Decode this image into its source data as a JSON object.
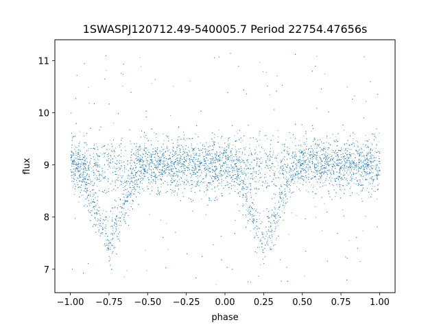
{
  "chart_data": {
    "type": "scatter",
    "title": "1SWASPJ120712.49-540005.7 Period 22754.47656s",
    "xlabel": "phase",
    "ylabel": "flux",
    "xlim": [
      -1.1,
      1.1
    ],
    "ylim": [
      6.55,
      11.4
    ],
    "x_ticks": [
      -1.0,
      -0.75,
      -0.5,
      -0.25,
      0.0,
      0.25,
      0.5,
      0.75,
      1.0
    ],
    "x_tick_labels": [
      "−1.00",
      "−0.75",
      "−0.50",
      "−0.25",
      "0.00",
      "0.25",
      "0.50",
      "0.75",
      "1.00"
    ],
    "y_ticks": [
      7,
      8,
      9,
      10,
      11
    ],
    "y_tick_labels": [
      "7",
      "8",
      "9",
      "10",
      "11"
    ],
    "grid": false,
    "marker_color": "#1f77b4",
    "series": [
      {
        "x_range": [
          -1.0,
          1.0
        ],
        "baseline_flux": 9.0,
        "eclipses": [
          {
            "phase": -0.75,
            "min_flux": 7.5
          },
          {
            "phase": 0.25,
            "min_flux": 7.5
          }
        ],
        "flux_range": [
          6.7,
          11.2
        ]
      }
    ]
  }
}
